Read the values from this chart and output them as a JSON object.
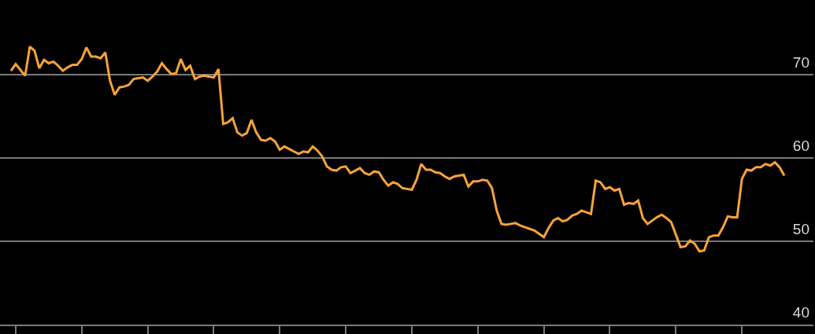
{
  "chart_data": {
    "type": "line",
    "categories": [
      null,
      null,
      null,
      null,
      null,
      null,
      null,
      null,
      null,
      null,
      null,
      null,
      null,
      null,
      null,
      null,
      null,
      null,
      null,
      null,
      null,
      null,
      null,
      null,
      null,
      null,
      null,
      null,
      null,
      null,
      null,
      null,
      null,
      null,
      null,
      null,
      null,
      null,
      null,
      null,
      null,
      null,
      null,
      null,
      null,
      null,
      null,
      null,
      null,
      null,
      null,
      null,
      null,
      null,
      null,
      null,
      null,
      null,
      null,
      null,
      null,
      null,
      null,
      null,
      null,
      null,
      null,
      null,
      null,
      null,
      null,
      null,
      null,
      null,
      null,
      null,
      null,
      null,
      null,
      null,
      null,
      null,
      null,
      null,
      null,
      null,
      null,
      null,
      null,
      null,
      null,
      null,
      null,
      null,
      null,
      null,
      null,
      null,
      null,
      null,
      null,
      null,
      null,
      null,
      null,
      null,
      null,
      null,
      null,
      null,
      null,
      null,
      null,
      null,
      null,
      null,
      null,
      null,
      null,
      null,
      null,
      null,
      null,
      null,
      null,
      null,
      null,
      null,
      null,
      null,
      null,
      null,
      null,
      null,
      null,
      null,
      null,
      null,
      null,
      null,
      null,
      null,
      null,
      null,
      null,
      null,
      null,
      null,
      null,
      null,
      null,
      null,
      null,
      null,
      null,
      null,
      null,
      null,
      null,
      null,
      null,
      null,
      null,
      null,
      null
    ],
    "series": [
      {
        "color": "#f7a23b",
        "values": [
          70.5,
          71.3,
          70.6,
          69.9,
          73.4,
          72.9,
          70.8,
          71.8,
          71.4,
          71.6,
          71.1,
          70.5,
          70.9,
          71.2,
          71.2,
          71.9,
          73.3,
          72.2,
          72.2,
          72.0,
          72.7,
          69.3,
          67.6,
          68.5,
          68.6,
          68.8,
          69.5,
          69.6,
          69.7,
          69.3,
          69.8,
          70.4,
          71.4,
          70.7,
          70.1,
          70.2,
          71.9,
          70.6,
          71.1,
          69.5,
          69.8,
          69.9,
          69.8,
          69.7,
          70.7,
          64.1,
          64.3,
          64.8,
          63.1,
          62.7,
          63.0,
          64.6,
          63.1,
          62.2,
          62.1,
          62.4,
          62.0,
          61.0,
          61.4,
          61.1,
          60.8,
          60.5,
          60.8,
          60.7,
          61.4,
          60.9,
          60.2,
          59.0,
          58.6,
          58.5,
          58.9,
          59.0,
          58.2,
          58.5,
          58.8,
          58.2,
          58.0,
          58.4,
          58.3,
          57.4,
          56.7,
          57.1,
          56.9,
          56.4,
          56.3,
          56.2,
          57.4,
          59.3,
          58.6,
          58.6,
          58.3,
          58.2,
          57.8,
          57.5,
          57.8,
          57.9,
          58.0,
          56.6,
          57.2,
          57.2,
          57.4,
          57.3,
          56.4,
          53.7,
          52.1,
          52.0,
          52.1,
          52.2,
          51.9,
          51.7,
          51.5,
          51.3,
          50.9,
          50.5,
          51.6,
          52.5,
          52.8,
          52.4,
          52.6,
          53.1,
          53.3,
          53.7,
          53.5,
          53.3,
          57.3,
          57.1,
          56.3,
          56.5,
          56.1,
          56.3,
          54.4,
          54.6,
          54.5,
          54.9,
          52.8,
          52.1,
          52.5,
          52.9,
          53.2,
          52.8,
          52.3,
          50.8,
          49.3,
          49.4,
          50.1,
          49.7,
          48.8,
          48.9,
          50.5,
          50.7,
          50.7,
          51.7,
          53.0,
          52.9,
          52.9,
          57.5,
          58.6,
          58.5,
          58.9,
          58.9,
          59.3,
          59.1,
          59.5,
          58.9,
          57.9
        ]
      }
    ],
    "ylim": [
      40,
      79
    ],
    "yticks": [
      40,
      50,
      60,
      70
    ],
    "grid": "y",
    "tick_labels": "y",
    "marker": "none",
    "line_style": "solid"
  }
}
